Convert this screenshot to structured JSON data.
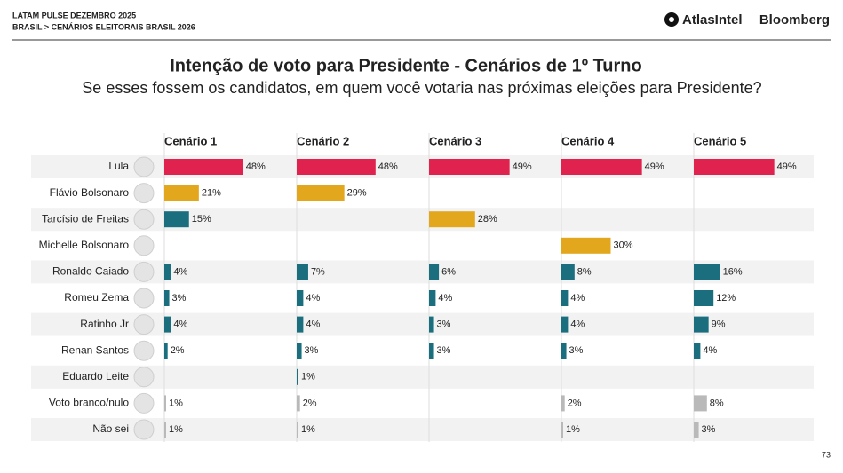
{
  "header": {
    "top": "LATAM PULSE DEZEMBRO 2025",
    "breadcrumb": "BRASIL > CENÁRIOS ELEITORAIS BRASIL 2026",
    "logo_left": "AtlasIntel",
    "logo_right": "Bloomberg"
  },
  "title": "Intenção de voto para Presidente - Cenários de 1º Turno",
  "subtitle": "Se esses fossem os candidatos, em quem você votaria nas próximas eleições para Presidente?",
  "page_number": "73",
  "chart_data": [
    {
      "type": "bar",
      "title": "Cenário 1",
      "categories": [
        "Lula",
        "Flávio Bolsonaro",
        "Tarcísio de Freitas",
        "Michelle Bolsonaro",
        "Ronaldo Caiado",
        "Romeu Zema",
        "Ratinho Jr",
        "Renan Santos",
        "Eduardo Leite",
        "Voto branco/nulo",
        "Não sei"
      ],
      "values": [
        48,
        21,
        15,
        null,
        4,
        3,
        4,
        2,
        null,
        1,
        1
      ],
      "value_labels": [
        "48%",
        "21%",
        "15%",
        null,
        "4%",
        "3%",
        "4%",
        "2%",
        null,
        "1%",
        "1%"
      ],
      "colors": [
        "#e0234e",
        "#e3a71e",
        "#1a6e7e",
        null,
        "#1a6e7e",
        "#1a6e7e",
        "#1a6e7e",
        "#1a6e7e",
        null,
        "#b9b9b9",
        "#b9b9b9"
      ]
    },
    {
      "type": "bar",
      "title": "Cenário 2",
      "values": [
        48,
        29,
        null,
        null,
        7,
        4,
        4,
        3,
        1,
        2,
        1
      ],
      "value_labels": [
        "48%",
        "29%",
        null,
        null,
        "7%",
        "4%",
        "4%",
        "3%",
        "1%",
        "2%",
        "1%"
      ],
      "colors": [
        "#e0234e",
        "#e3a71e",
        null,
        null,
        "#1a6e7e",
        "#1a6e7e",
        "#1a6e7e",
        "#1a6e7e",
        "#1a6e7e",
        "#b9b9b9",
        "#b9b9b9"
      ]
    },
    {
      "type": "bar",
      "title": "Cenário 3",
      "values": [
        49,
        null,
        28,
        null,
        6,
        4,
        3,
        3,
        null,
        null,
        null
      ],
      "value_labels": [
        "49%",
        null,
        "28%",
        null,
        "6%",
        "4%",
        "3%",
        "3%",
        null,
        null,
        null
      ],
      "colors": [
        "#e0234e",
        null,
        "#e3a71e",
        null,
        "#1a6e7e",
        "#1a6e7e",
        "#1a6e7e",
        "#1a6e7e",
        null,
        null,
        null
      ]
    },
    {
      "type": "bar",
      "title": "Cenário 4",
      "values": [
        49,
        null,
        null,
        30,
        8,
        4,
        4,
        3,
        null,
        2,
        1
      ],
      "value_labels": [
        "49%",
        null,
        null,
        "30%",
        "8%",
        "4%",
        "4%",
        "3%",
        null,
        "2%",
        "1%"
      ],
      "colors": [
        "#e0234e",
        null,
        null,
        "#e3a71e",
        "#1a6e7e",
        "#1a6e7e",
        "#1a6e7e",
        "#1a6e7e",
        null,
        "#b9b9b9",
        "#b9b9b9"
      ]
    },
    {
      "type": "bar",
      "title": "Cenário 5",
      "values": [
        49,
        null,
        null,
        null,
        16,
        12,
        9,
        4,
        null,
        8,
        3
      ],
      "value_labels": [
        "49%",
        null,
        null,
        null,
        "16%",
        "12%",
        "9%",
        "4%",
        null,
        "8%",
        "3%"
      ],
      "colors": [
        "#e0234e",
        null,
        null,
        null,
        "#1a6e7e",
        "#1a6e7e",
        "#1a6e7e",
        "#1a6e7e",
        null,
        "#b9b9b9",
        "#b9b9b9"
      ]
    }
  ]
}
